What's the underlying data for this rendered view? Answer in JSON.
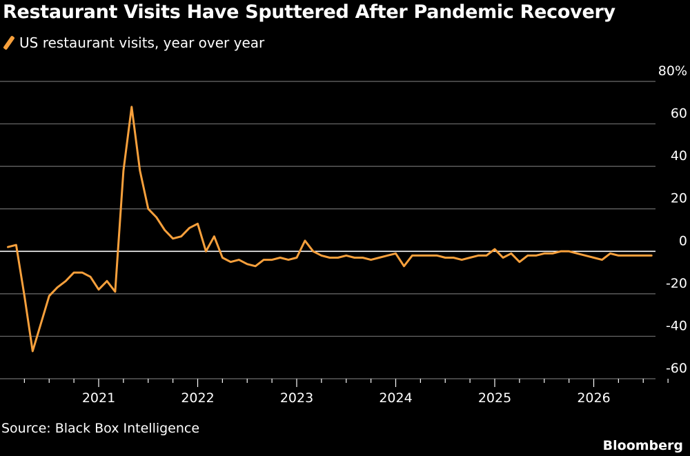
{
  "title": "Restaurant Visits Have Sputtered After Pandemic Recovery",
  "legend_label": "US restaurant visits, year over year",
  "source": "Source: Black Box Intelligence",
  "brand": "Bloomberg",
  "colors": {
    "background": "#000000",
    "line": "#f7a03c",
    "grid": "#6e6e6e",
    "zero_line": "#ffffff",
    "text": "#ffffff"
  },
  "chart_data": {
    "type": "line",
    "title": "Restaurant Visits Have Sputtered After Pandemic Recovery",
    "ylabel": "",
    "xlabel": "",
    "ylim": [
      -60,
      80
    ],
    "y_ticks": [
      {
        "value": 80,
        "label": "80%"
      },
      {
        "value": 60,
        "label": "60"
      },
      {
        "value": 40,
        "label": "40"
      },
      {
        "value": 20,
        "label": "20"
      },
      {
        "value": 0,
        "label": "0"
      },
      {
        "value": -20,
        "label": "-20"
      },
      {
        "value": -40,
        "label": "-40"
      },
      {
        "value": -60,
        "label": "-60"
      }
    ],
    "x_ticks": [
      "2021",
      "2022",
      "2023",
      "2024",
      "2025",
      "2026"
    ],
    "grid": true,
    "legend_position": "top-left",
    "series": [
      {
        "name": "US restaurant visits, year over year",
        "x": [
          "2020-02",
          "2020-03",
          "2020-04",
          "2020-05",
          "2020-06",
          "2020-07",
          "2020-08",
          "2020-09",
          "2020-10",
          "2020-11",
          "2020-12",
          "2021-01",
          "2021-02",
          "2021-03",
          "2021-04",
          "2021-05",
          "2021-06",
          "2021-07",
          "2021-08",
          "2021-09",
          "2021-10",
          "2021-11",
          "2021-12",
          "2022-01",
          "2022-02",
          "2022-03",
          "2022-04",
          "2022-05",
          "2022-06",
          "2022-07",
          "2022-08",
          "2022-09",
          "2022-10",
          "2022-11",
          "2022-12",
          "2023-01",
          "2023-02",
          "2023-03",
          "2023-04",
          "2023-05",
          "2023-06",
          "2023-07",
          "2023-08",
          "2023-09",
          "2023-10",
          "2023-11",
          "2023-12",
          "2024-01",
          "2024-02",
          "2024-03",
          "2024-04",
          "2024-05",
          "2024-06",
          "2024-07",
          "2024-08",
          "2024-09",
          "2024-10",
          "2024-11",
          "2024-12",
          "2025-01",
          "2025-02",
          "2025-03",
          "2025-04",
          "2025-05",
          "2025-06",
          "2025-07",
          "2025-08",
          "2025-09",
          "2025-10",
          "2025-11",
          "2025-12",
          "2026-01",
          "2026-02",
          "2026-03",
          "2026-04",
          "2026-05",
          "2026-06",
          "2026-07",
          "2026-08"
        ],
        "values": [
          2,
          3,
          -21,
          -47,
          -34,
          -21,
          -17,
          -14,
          -10,
          -10,
          -12,
          -18,
          -14,
          -19,
          38,
          68,
          38,
          20,
          16,
          10,
          6,
          7,
          11,
          13,
          0,
          7,
          -3,
          -5,
          -4,
          -6,
          -7,
          -4,
          -4,
          -3,
          -4,
          -3,
          5,
          0,
          -2,
          -3,
          -3,
          -2,
          -3,
          -3,
          -4,
          -3,
          -2,
          -1,
          -7,
          -2,
          -2,
          -2,
          -2,
          -3,
          -3,
          -4,
          -3,
          -2,
          -2,
          1,
          -3,
          -1,
          -5,
          -2,
          -2,
          -1,
          -1,
          0,
          0,
          -1,
          -2,
          -3,
          -4,
          -1,
          -2,
          -2,
          -2,
          -2,
          -2
        ]
      }
    ]
  }
}
